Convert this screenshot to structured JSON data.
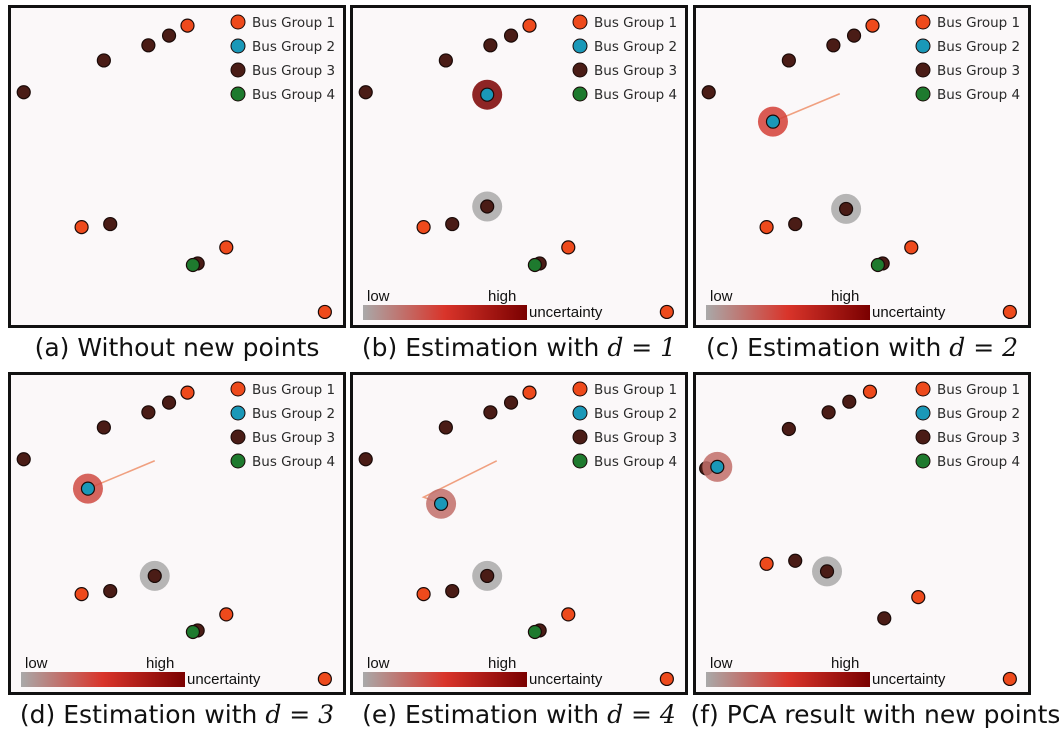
{
  "colors": {
    "bus_group_1": "#ee4a1c",
    "bus_group_2": "#1a98b8",
    "bus_group_3": "#4a1c16",
    "bus_group_4": "#1e7a2e",
    "uncertainty_low": "#a9a9a9",
    "uncertainty_high": "#7a0000",
    "frame": "#111111",
    "background": "#fbf8f9"
  },
  "legend": {
    "entries": [
      "Bus Group 1",
      "Bus Group 2",
      "Bus Group 3",
      "Bus Group 4"
    ]
  },
  "uncertainty_bar": {
    "low_label": "low",
    "high_label": "high",
    "title": "uncertainty"
  },
  "chart_data": [
    {
      "type": "scatter",
      "caption": {
        "prefix": "(a) Without new points",
        "math": ""
      },
      "show_uncertainty_bar": false,
      "xlim": [
        0,
        1
      ],
      "ylim": [
        0,
        1
      ],
      "points": [
        {
          "x": 0.533,
          "y": 0.965,
          "group": 1
        },
        {
          "x": 0.475,
          "y": 0.932,
          "group": 3
        },
        {
          "x": 0.41,
          "y": 0.9,
          "group": 3
        },
        {
          "x": 0.27,
          "y": 0.85,
          "group": 3
        },
        {
          "x": 0.018,
          "y": 0.745,
          "group": 3
        },
        {
          "x": 0.2,
          "y": 0.3,
          "group": 1
        },
        {
          "x": 0.29,
          "y": 0.31,
          "group": 3
        },
        {
          "x": 0.565,
          "y": 0.18,
          "group": 3
        },
        {
          "x": 0.55,
          "y": 0.175,
          "group": 4
        },
        {
          "x": 0.655,
          "y": 0.233,
          "group": 1
        },
        {
          "x": 0.965,
          "y": 0.02,
          "group": 1
        }
      ],
      "estimates": []
    },
    {
      "type": "scatter",
      "caption": {
        "prefix": "(b) Estimation with ",
        "math": "d = 1"
      },
      "show_uncertainty_bar": true,
      "xlim": [
        0,
        1
      ],
      "ylim": [
        0,
        1
      ],
      "points": [
        {
          "x": 0.533,
          "y": 0.965,
          "group": 1
        },
        {
          "x": 0.475,
          "y": 0.932,
          "group": 3
        },
        {
          "x": 0.41,
          "y": 0.9,
          "group": 3
        },
        {
          "x": 0.27,
          "y": 0.85,
          "group": 3
        },
        {
          "x": 0.018,
          "y": 0.745,
          "group": 3
        },
        {
          "x": 0.2,
          "y": 0.3,
          "group": 1
        },
        {
          "x": 0.29,
          "y": 0.31,
          "group": 3
        },
        {
          "x": 0.565,
          "y": 0.18,
          "group": 3
        },
        {
          "x": 0.55,
          "y": 0.175,
          "group": 4
        },
        {
          "x": 0.655,
          "y": 0.233,
          "group": 1
        },
        {
          "x": 0.965,
          "y": 0.02,
          "group": 1
        }
      ],
      "estimates": [
        {
          "x": 0.4,
          "y": 0.737,
          "group": 2,
          "uncertainty": 1.0
        },
        {
          "x": 0.4,
          "y": 0.368,
          "group": 3,
          "uncertainty": 0.0
        }
      ]
    },
    {
      "type": "scatter",
      "caption": {
        "prefix": "(c) Estimation with ",
        "math": "d = 2"
      },
      "show_uncertainty_bar": true,
      "xlim": [
        0,
        1
      ],
      "ylim": [
        0,
        1
      ],
      "points": [
        {
          "x": 0.533,
          "y": 0.965,
          "group": 1
        },
        {
          "x": 0.475,
          "y": 0.932,
          "group": 3
        },
        {
          "x": 0.41,
          "y": 0.9,
          "group": 3
        },
        {
          "x": 0.27,
          "y": 0.85,
          "group": 3
        },
        {
          "x": 0.018,
          "y": 0.745,
          "group": 3
        },
        {
          "x": 0.2,
          "y": 0.3,
          "group": 1
        },
        {
          "x": 0.29,
          "y": 0.31,
          "group": 3
        },
        {
          "x": 0.565,
          "y": 0.18,
          "group": 3
        },
        {
          "x": 0.55,
          "y": 0.175,
          "group": 4
        },
        {
          "x": 0.655,
          "y": 0.233,
          "group": 1
        },
        {
          "x": 0.965,
          "y": 0.02,
          "group": 1
        }
      ],
      "estimates": [
        {
          "x": 0.22,
          "y": 0.648,
          "group": 2,
          "uncertainty": 0.45,
          "trail_to": [
            0.43,
            0.74
          ]
        },
        {
          "x": 0.45,
          "y": 0.36,
          "group": 3,
          "uncertainty": 0.0
        }
      ]
    },
    {
      "type": "scatter",
      "caption": {
        "prefix": "(d) Estimation with ",
        "math": "d = 3"
      },
      "show_uncertainty_bar": true,
      "xlim": [
        0,
        1
      ],
      "ylim": [
        0,
        1
      ],
      "points": [
        {
          "x": 0.533,
          "y": 0.965,
          "group": 1
        },
        {
          "x": 0.475,
          "y": 0.932,
          "group": 3
        },
        {
          "x": 0.41,
          "y": 0.9,
          "group": 3
        },
        {
          "x": 0.27,
          "y": 0.85,
          "group": 3
        },
        {
          "x": 0.018,
          "y": 0.745,
          "group": 3
        },
        {
          "x": 0.2,
          "y": 0.3,
          "group": 1
        },
        {
          "x": 0.29,
          "y": 0.31,
          "group": 3
        },
        {
          "x": 0.565,
          "y": 0.18,
          "group": 3
        },
        {
          "x": 0.55,
          "y": 0.175,
          "group": 4
        },
        {
          "x": 0.655,
          "y": 0.233,
          "group": 1
        },
        {
          "x": 0.965,
          "y": 0.02,
          "group": 1
        }
      ],
      "estimates": [
        {
          "x": 0.22,
          "y": 0.648,
          "group": 2,
          "uncertainty": 0.4,
          "trail_to": [
            0.43,
            0.74
          ]
        },
        {
          "x": 0.43,
          "y": 0.36,
          "group": 3,
          "uncertainty": 0.0
        }
      ]
    },
    {
      "type": "scatter",
      "caption": {
        "prefix": "(e) Estimation with ",
        "math": "d = 4"
      },
      "show_uncertainty_bar": true,
      "xlim": [
        0,
        1
      ],
      "ylim": [
        0,
        1
      ],
      "points": [
        {
          "x": 0.533,
          "y": 0.965,
          "group": 1
        },
        {
          "x": 0.475,
          "y": 0.932,
          "group": 3
        },
        {
          "x": 0.41,
          "y": 0.9,
          "group": 3
        },
        {
          "x": 0.27,
          "y": 0.85,
          "group": 3
        },
        {
          "x": 0.018,
          "y": 0.745,
          "group": 3
        },
        {
          "x": 0.2,
          "y": 0.3,
          "group": 1
        },
        {
          "x": 0.29,
          "y": 0.31,
          "group": 3
        },
        {
          "x": 0.565,
          "y": 0.18,
          "group": 3
        },
        {
          "x": 0.55,
          "y": 0.175,
          "group": 4
        },
        {
          "x": 0.655,
          "y": 0.233,
          "group": 1
        },
        {
          "x": 0.965,
          "y": 0.02,
          "group": 1
        }
      ],
      "estimates": [
        {
          "x": 0.255,
          "y": 0.598,
          "group": 2,
          "uncertainty": 0.25,
          "trail_to": [
            0.43,
            0.74
          ],
          "trail_via": [
            0.2,
            0.62
          ]
        },
        {
          "x": 0.4,
          "y": 0.36,
          "group": 3,
          "uncertainty": 0.0
        }
      ]
    },
    {
      "type": "scatter",
      "caption": {
        "prefix": "(f) PCA result with new points",
        "math": ""
      },
      "show_uncertainty_bar": true,
      "xlim": [
        0,
        1
      ],
      "ylim": [
        0,
        1
      ],
      "points": [
        {
          "x": 0.525,
          "y": 0.968,
          "group": 1
        },
        {
          "x": 0.46,
          "y": 0.935,
          "group": 3
        },
        {
          "x": 0.395,
          "y": 0.9,
          "group": 3
        },
        {
          "x": 0.27,
          "y": 0.845,
          "group": 3
        },
        {
          "x": 0.01,
          "y": 0.715,
          "group": 3
        },
        {
          "x": 0.2,
          "y": 0.4,
          "group": 1
        },
        {
          "x": 0.29,
          "y": 0.41,
          "group": 3
        },
        {
          "x": 0.57,
          "y": 0.22,
          "group": 3
        },
        {
          "x": 0.677,
          "y": 0.29,
          "group": 1
        },
        {
          "x": 0.965,
          "y": 0.02,
          "group": 1
        }
      ],
      "estimates": [
        {
          "x": 0.045,
          "y": 0.72,
          "group": 2,
          "uncertainty": 0.25
        },
        {
          "x": 0.39,
          "y": 0.375,
          "group": 3,
          "uncertainty": 0.0
        }
      ]
    }
  ]
}
